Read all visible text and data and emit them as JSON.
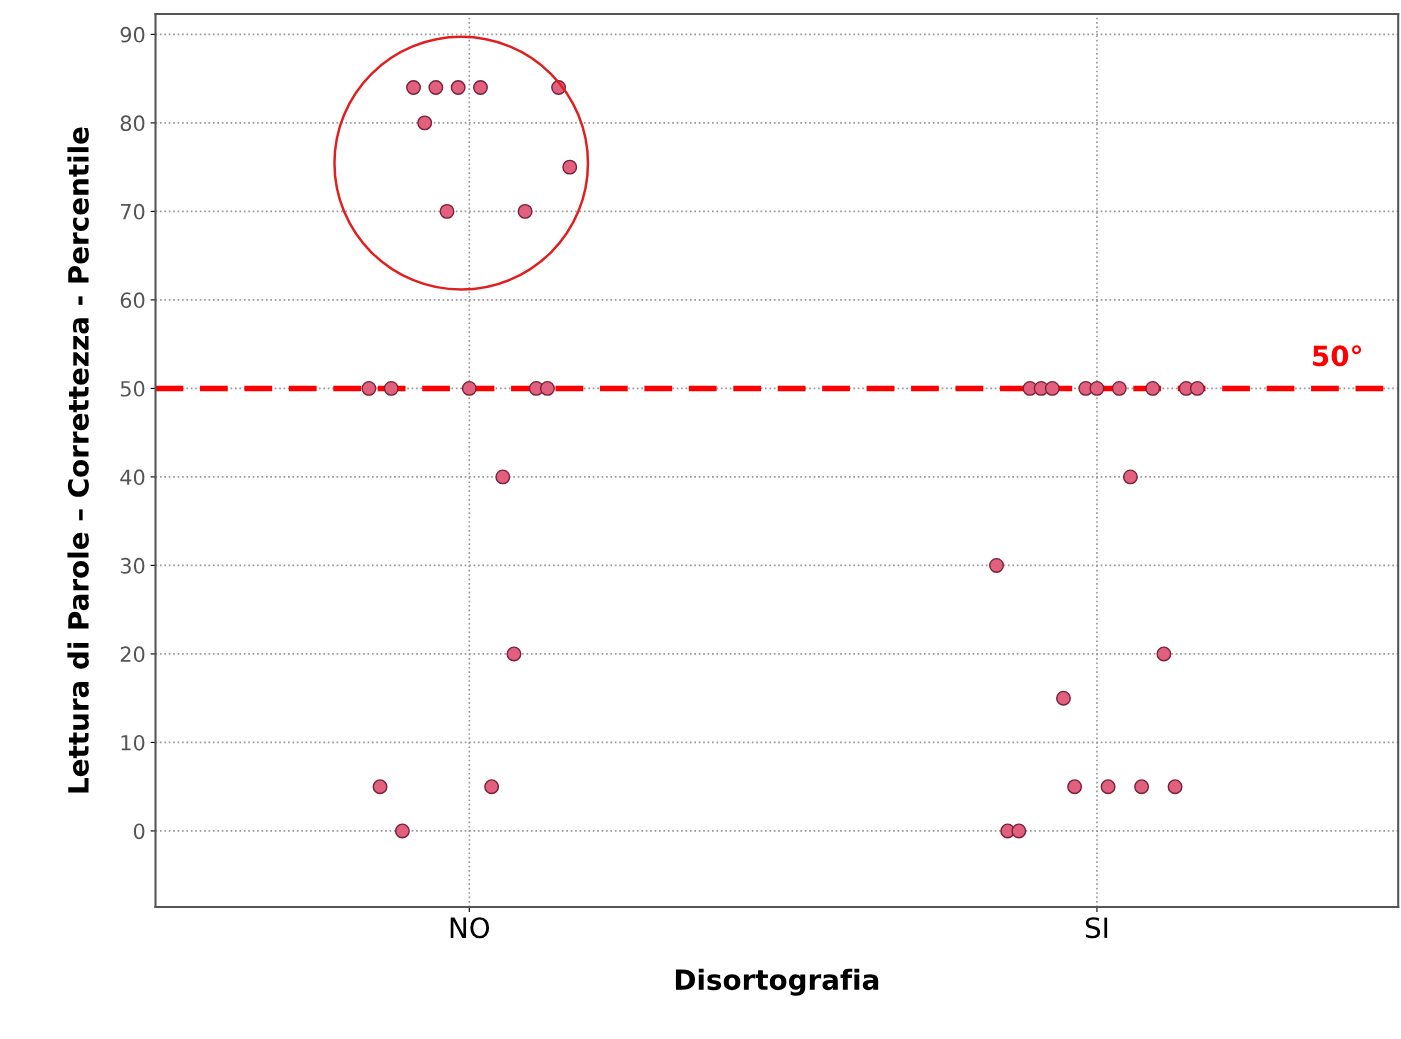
{
  "chart_data": {
    "type": "scatter",
    "xlabel": "Disortografia",
    "ylabel": "Lettura di Parole – Correttezza - Percentile",
    "categories": [
      "NO",
      "SI"
    ],
    "ylim": [
      -8.6,
      92.3
    ],
    "yticks": [
      0,
      10,
      20,
      30,
      40,
      50,
      60,
      70,
      80,
      90
    ],
    "grid": true,
    "marker": "circle",
    "series": [
      {
        "color": "#e0607e",
        "values": [
          50,
          30
        ]
      },
      {
        "color": "#e0607e",
        "values": [
          5,
          0
        ]
      },
      {
        "color": "#e0607e",
        "values": [
          50,
          0
        ]
      },
      {
        "color": "#e0607e",
        "values": [
          0,
          50
        ]
      },
      {
        "color": "#e0607e",
        "values": [
          84,
          50
        ]
      },
      {
        "color": "#e0607e",
        "values": [
          80,
          50
        ]
      },
      {
        "color": "#e0607e",
        "values": [
          84,
          15
        ]
      },
      {
        "color": "#e0607e",
        "values": [
          70,
          5
        ]
      },
      {
        "color": "#e0607e",
        "values": [
          84,
          50
        ]
      },
      {
        "color": "#e0607e",
        "values": [
          50,
          50
        ]
      },
      {
        "color": "#e0607e",
        "values": [
          84,
          5
        ]
      },
      {
        "color": "#e0607e",
        "values": [
          5,
          50
        ]
      },
      {
        "color": "#e0607e",
        "values": [
          40,
          40
        ]
      },
      {
        "color": "#e0607e",
        "values": [
          20,
          5
        ]
      },
      {
        "color": "#e0607e",
        "values": [
          70,
          50
        ]
      },
      {
        "color": "#e0607e",
        "values": [
          50,
          20
        ]
      },
      {
        "color": "#e0607e",
        "values": [
          50,
          5
        ]
      },
      {
        "color": "#e0607e",
        "values": [
          84,
          50
        ]
      },
      {
        "color": "#e0607e",
        "values": [
          75,
          50
        ]
      }
    ],
    "ref_lines": [
      {
        "axis": "y",
        "value": 50,
        "label": "50°",
        "color": "#ff0000",
        "line_style": "dashed"
      }
    ]
  }
}
